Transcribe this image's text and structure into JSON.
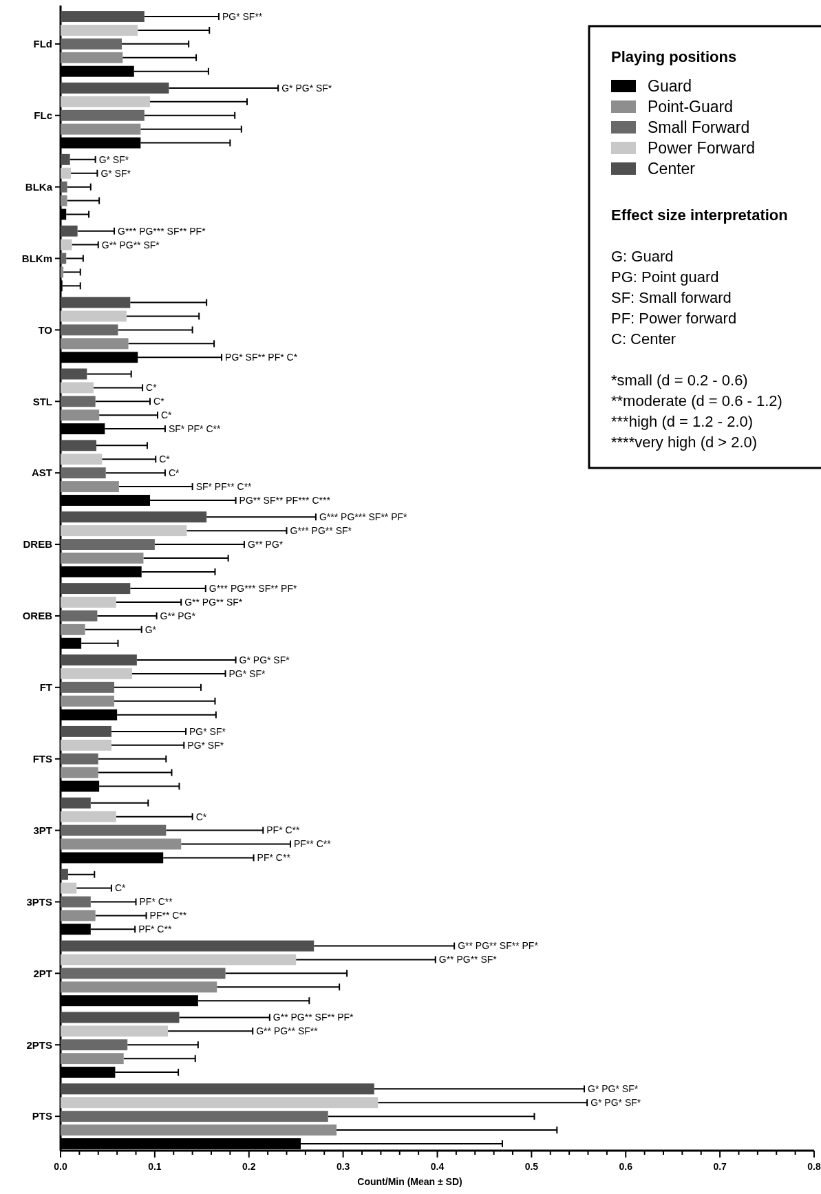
{
  "chart_data": {
    "type": "bar",
    "orientation": "horizontal",
    "xlabel": "Count/Min (Mean ± SD)",
    "legend_title": "Playing positions",
    "legend": "top right",
    "grid": false,
    "categories": [
      "FLd",
      "FLc",
      "BLKa",
      "BLKm",
      "TO",
      "STL",
      "AST",
      "DREB",
      "OREB",
      "FT",
      "FTS",
      "3PT",
      "3PTS",
      "2PT",
      "2PTS",
      "PTS"
    ],
    "xlim": [
      0,
      0.8
    ],
    "xticks": [
      {
        "value": 0,
        "label": "0.0"
      },
      0.1,
      0.2,
      0.3,
      0.4,
      0.5,
      0.6,
      0.7,
      0.8
    ],
    "series": [
      {
        "name": "Guard",
        "color": "#000000",
        "values": [
          0.078,
          0.085,
          0.006,
          0.002,
          0.082,
          0.047,
          0.095,
          0.086,
          0.022,
          0.06,
          0.041,
          0.109,
          0.032,
          0.146,
          0.058,
          0.255
        ],
        "errors": [
          0.079,
          0.095,
          0.024,
          0.019,
          0.089,
          0.064,
          0.091,
          0.078,
          0.039,
          0.105,
          0.085,
          0.096,
          0.047,
          0.118,
          0.067,
          0.214
        ]
      },
      {
        "name": "Point-Guard",
        "color": "#8e8e8e",
        "values": [
          0.066,
          0.085,
          0.007,
          0.003,
          0.072,
          0.041,
          0.062,
          0.088,
          0.026,
          0.057,
          0.04,
          0.128,
          0.037,
          0.166,
          0.067,
          0.293
        ],
        "errors": [
          0.078,
          0.107,
          0.034,
          0.018,
          0.091,
          0.062,
          0.078,
          0.09,
          0.06,
          0.107,
          0.078,
          0.116,
          0.054,
          0.13,
          0.076,
          0.234
        ]
      },
      {
        "name": "Small Forward",
        "color": "#696969",
        "values": [
          0.065,
          0.089,
          0.007,
          0.006,
          0.061,
          0.037,
          0.048,
          0.1,
          0.039,
          0.057,
          0.04,
          0.112,
          0.032,
          0.175,
          0.071,
          0.284
        ],
        "errors": [
          0.071,
          0.096,
          0.025,
          0.018,
          0.079,
          0.058,
          0.063,
          0.095,
          0.063,
          0.092,
          0.072,
          0.103,
          0.048,
          0.129,
          0.075,
          0.219
        ]
      },
      {
        "name": "Power Forward",
        "color": "#c8c8c8",
        "values": [
          0.082,
          0.095,
          0.011,
          0.012,
          0.07,
          0.035,
          0.044,
          0.134,
          0.059,
          0.076,
          0.054,
          0.059,
          0.017,
          0.25,
          0.114,
          0.337
        ],
        "errors": [
          0.076,
          0.103,
          0.028,
          0.028,
          0.077,
          0.052,
          0.057,
          0.106,
          0.069,
          0.099,
          0.077,
          0.081,
          0.037,
          0.148,
          0.09,
          0.222
        ]
      },
      {
        "name": "Center",
        "color": "#505050",
        "values": [
          0.089,
          0.115,
          0.01,
          0.018,
          0.074,
          0.028,
          0.038,
          0.155,
          0.074,
          0.081,
          0.054,
          0.032,
          0.008,
          0.269,
          0.126,
          0.333
        ],
        "errors": [
          0.079,
          0.116,
          0.027,
          0.039,
          0.081,
          0.047,
          0.054,
          0.116,
          0.08,
          0.105,
          0.079,
          0.061,
          0.028,
          0.149,
          0.096,
          0.223
        ]
      }
    ],
    "annotations": [
      "Effect size interpretation",
      "G: Guard",
      "PG: Point guard",
      "SF: Small forward",
      "PF: Power forward",
      "C: Center",
      "*small (d = 0.2 - 0.6)",
      "**moderate (d = 0.6 - 1.2)",
      "***high (d = 1.2 - 2.0)",
      "****very high (d > 2.0)",
      "PG* SF** PF* C*",
      "SF* PF* C**",
      "PG** SF** PF*** C***",
      "PF* C**",
      "PF* C**",
      "C*",
      "SF* PF** C**",
      "G*",
      "PF** C**",
      "PF** C**",
      "C*",
      "C*",
      "G** PG*",
      "G** PG*",
      "PF* C**",
      "PF* C**",
      "G* SF*",
      "G** PG** SF*",
      "C*",
      "C*",
      "G*** PG** SF*",
      "G** PG** SF*",
      "PG* SF*",
      "PG* SF*",
      "C*",
      "C*",
      "G** PG** SF*",
      "G** PG** SF**",
      "G* PG* SF*",
      "PG* SF**",
      "G* PG* SF*",
      "G* SF*",
      "G*** PG*** SF** PF*",
      "G*** PG*** SF** PF*",
      "G*** PG*** SF** PF*",
      "G* PG* SF*",
      "PG* SF*",
      "G** PG** SF** PF*",
      "G** PG** SF** PF*",
      "G* PG* SF*"
    ]
  }
}
